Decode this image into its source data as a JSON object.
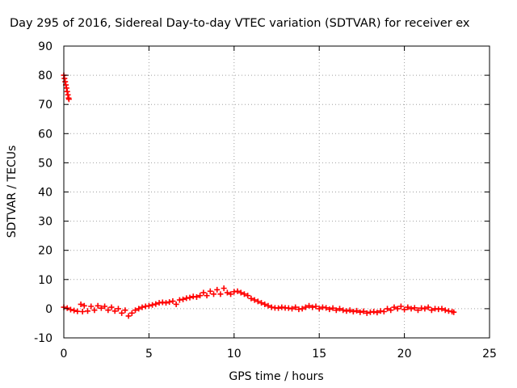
{
  "chart_data": {
    "type": "scatter",
    "title": "Day 295 of 2016, Sidereal Day-to-day VTEC variation (SDTVAR) for receiver ex",
    "xlabel": "GPS time / hours",
    "ylabel": "SDTVAR / TECUs",
    "xlim": [
      0,
      25
    ],
    "ylim": [
      -10,
      90
    ],
    "xticks": [
      0,
      5,
      10,
      15,
      20,
      25
    ],
    "yticks": [
      -10,
      0,
      10,
      20,
      30,
      40,
      50,
      60,
      70,
      80,
      90
    ],
    "grid": true,
    "marker_color": "#ff0000",
    "marker": "plus",
    "series": [
      {
        "points": [
          [
            0.0,
            80.0
          ],
          [
            0.04,
            78.9
          ],
          [
            0.08,
            77.8
          ],
          [
            0.12,
            76.7
          ],
          [
            0.16,
            75.6
          ],
          [
            0.2,
            74.4
          ],
          [
            0.24,
            73.3
          ],
          [
            0.28,
            72.2
          ],
          [
            0.3,
            71.8
          ],
          [
            0.0,
            0.5
          ],
          [
            0.2,
            0.2
          ],
          [
            0.4,
            -0.3
          ],
          [
            0.6,
            -0.6
          ],
          [
            0.8,
            -0.9
          ],
          [
            1.0,
            1.5
          ],
          [
            1.1,
            -1.0
          ],
          [
            1.2,
            1.0
          ],
          [
            1.4,
            -0.8
          ],
          [
            1.6,
            0.8
          ],
          [
            1.8,
            -0.5
          ],
          [
            2.0,
            1.0
          ],
          [
            2.2,
            0.2
          ],
          [
            2.4,
            0.8
          ],
          [
            2.6,
            -0.5
          ],
          [
            2.8,
            0.5
          ],
          [
            3.0,
            -0.8
          ],
          [
            3.2,
            0.0
          ],
          [
            3.4,
            -1.5
          ],
          [
            3.6,
            -0.5
          ],
          [
            3.8,
            -2.5
          ],
          [
            4.0,
            -1.5
          ],
          [
            4.2,
            -0.5
          ],
          [
            4.4,
            0.0
          ],
          [
            4.6,
            0.5
          ],
          [
            4.8,
            0.8
          ],
          [
            5.0,
            1.0
          ],
          [
            5.2,
            1.3
          ],
          [
            5.4,
            1.6
          ],
          [
            5.6,
            2.0
          ],
          [
            5.8,
            2.2
          ],
          [
            6.0,
            2.0
          ],
          [
            6.2,
            2.3
          ],
          [
            6.4,
            2.6
          ],
          [
            6.6,
            1.5
          ],
          [
            6.8,
            3.0
          ],
          [
            7.0,
            3.2
          ],
          [
            7.2,
            3.6
          ],
          [
            7.4,
            3.8
          ],
          [
            7.6,
            4.2
          ],
          [
            7.8,
            4.0
          ],
          [
            8.0,
            4.5
          ],
          [
            8.2,
            5.5
          ],
          [
            8.4,
            4.5
          ],
          [
            8.6,
            6.0
          ],
          [
            8.8,
            5.0
          ],
          [
            9.0,
            6.5
          ],
          [
            9.2,
            5.0
          ],
          [
            9.4,
            7.0
          ],
          [
            9.6,
            5.5
          ],
          [
            9.8,
            5.0
          ],
          [
            10.0,
            5.8
          ],
          [
            10.2,
            6.0
          ],
          [
            10.4,
            5.5
          ],
          [
            10.6,
            5.0
          ],
          [
            10.8,
            4.5
          ],
          [
            11.0,
            3.5
          ],
          [
            11.2,
            3.0
          ],
          [
            11.4,
            2.5
          ],
          [
            11.6,
            2.0
          ],
          [
            11.8,
            1.5
          ],
          [
            12.0,
            1.0
          ],
          [
            12.2,
            0.5
          ],
          [
            12.4,
            0.3
          ],
          [
            12.6,
            0.2
          ],
          [
            12.8,
            0.5
          ],
          [
            13.0,
            0.3
          ],
          [
            13.2,
            0.2
          ],
          [
            13.4,
            0.0
          ],
          [
            13.6,
            0.5
          ],
          [
            13.8,
            -0.2
          ],
          [
            14.0,
            0.0
          ],
          [
            14.2,
            0.5
          ],
          [
            14.4,
            1.0
          ],
          [
            14.6,
            0.5
          ],
          [
            14.8,
            0.8
          ],
          [
            15.0,
            0.0
          ],
          [
            15.2,
            0.5
          ],
          [
            15.4,
            0.3
          ],
          [
            15.6,
            -0.2
          ],
          [
            15.8,
            0.2
          ],
          [
            16.0,
            -0.5
          ],
          [
            16.2,
            0.0
          ],
          [
            16.4,
            -0.5
          ],
          [
            16.6,
            -0.8
          ],
          [
            16.8,
            -0.5
          ],
          [
            17.0,
            -1.0
          ],
          [
            17.2,
            -0.7
          ],
          [
            17.4,
            -1.2
          ],
          [
            17.6,
            -0.9
          ],
          [
            17.8,
            -1.5
          ],
          [
            18.0,
            -1.2
          ],
          [
            18.2,
            -1.0
          ],
          [
            18.4,
            -1.3
          ],
          [
            18.6,
            -0.8
          ],
          [
            18.8,
            -1.0
          ],
          [
            19.0,
            0.0
          ],
          [
            19.2,
            -0.5
          ],
          [
            19.4,
            0.5
          ],
          [
            19.6,
            0.0
          ],
          [
            19.8,
            0.8
          ],
          [
            20.0,
            -0.3
          ],
          [
            20.2,
            0.5
          ],
          [
            20.4,
            0.0
          ],
          [
            20.6,
            0.3
          ],
          [
            20.8,
            -0.5
          ],
          [
            21.0,
            0.2
          ],
          [
            21.2,
            0.0
          ],
          [
            21.4,
            0.5
          ],
          [
            21.6,
            -0.5
          ],
          [
            21.8,
            0.0
          ],
          [
            22.0,
            -0.2
          ],
          [
            22.2,
            0.0
          ],
          [
            22.4,
            -0.5
          ],
          [
            22.6,
            -0.8
          ],
          [
            22.8,
            -1.0
          ],
          [
            22.9,
            -1.2
          ]
        ]
      }
    ]
  }
}
